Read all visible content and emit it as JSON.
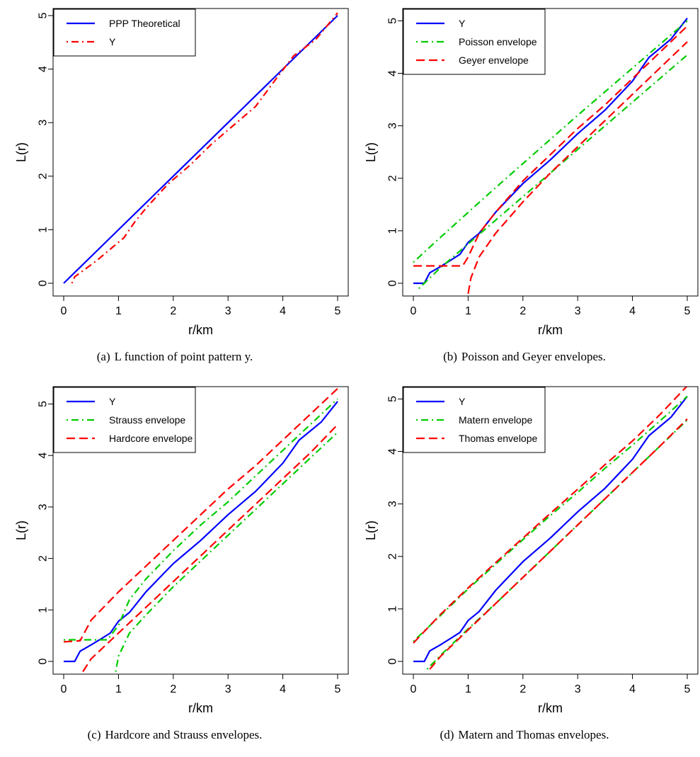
{
  "chart_data": [
    {
      "type": "line",
      "panel_label": "(a)",
      "caption": "L function of point pattern y.",
      "xlabel": "r/km",
      "ylabel": "L(r)",
      "xlim": [
        0,
        5
      ],
      "ylim": [
        0,
        5
      ],
      "xticks": [
        0,
        1,
        2,
        3,
        4,
        5
      ],
      "yticks": [
        0,
        1,
        2,
        3,
        4,
        5
      ],
      "legend_position": "top-left",
      "series": [
        {
          "name": "PPP Theoretical",
          "color": "#0000ff",
          "dash": "solid",
          "x": [
            0,
            5
          ],
          "y": [
            0,
            5
          ]
        },
        {
          "name": "Y",
          "color": "#ff0000",
          "dash": "dotdash",
          "x": [
            0.15,
            0.2,
            0.6,
            0.9,
            1.1,
            1.3,
            1.5,
            1.9,
            2.3,
            2.7,
            3.1,
            3.5,
            3.9,
            4.2,
            4.6,
            5.0
          ],
          "y": [
            0,
            0.12,
            0.42,
            0.68,
            0.85,
            1.15,
            1.4,
            1.85,
            2.2,
            2.6,
            2.95,
            3.3,
            3.85,
            4.25,
            4.55,
            5.05
          ]
        }
      ]
    },
    {
      "type": "line",
      "panel_label": "(b)",
      "caption": "Poisson and Geyer envelopes.",
      "xlabel": "r/km",
      "ylabel": "L(r)",
      "xlim": [
        0,
        5
      ],
      "ylim": [
        0,
        5.1
      ],
      "xticks": [
        0,
        1,
        2,
        3,
        4,
        5
      ],
      "yticks": [
        0,
        1,
        2,
        3,
        4,
        5
      ],
      "legend_position": "top-left",
      "series": [
        {
          "name": "Y",
          "color": "#0000ff",
          "dash": "solid",
          "x": [
            0,
            0.2,
            0.3,
            0.5,
            0.7,
            0.85,
            1.0,
            1.2,
            1.5,
            2.0,
            2.5,
            3.0,
            3.5,
            4.0,
            4.3,
            4.7,
            5.0
          ],
          "y": [
            0,
            0,
            0.2,
            0.32,
            0.45,
            0.55,
            0.78,
            0.95,
            1.35,
            1.9,
            2.35,
            2.85,
            3.3,
            3.85,
            4.3,
            4.65,
            5.05
          ]
        },
        {
          "name": "Poisson envelope",
          "color": "#00cc00",
          "dash": "dotdash",
          "x": [
            0,
            0.5,
            1,
            1.5,
            2,
            2.5,
            3,
            3.5,
            4,
            4.5,
            5
          ],
          "y": [
            0.4,
            0.88,
            1.35,
            1.82,
            2.28,
            2.74,
            3.2,
            3.65,
            4.1,
            4.55,
            5.0
          ]
        },
        {
          "name": "",
          "color": "#00cc00",
          "dash": "dotdash",
          "x": [
            0.1,
            0.5,
            1,
            1.5,
            2,
            2.5,
            3,
            3.5,
            4,
            4.5,
            5
          ],
          "y": [
            -0.1,
            0.3,
            0.75,
            1.2,
            1.65,
            2.1,
            2.55,
            3.0,
            3.45,
            3.9,
            4.35
          ]
        },
        {
          "name": "Geyer envelope",
          "color": "#ff0000",
          "dash": "dashed",
          "x": [
            0,
            0.9,
            1.0,
            1.2,
            1.5,
            2,
            2.5,
            3,
            3.5,
            4,
            4.5,
            5
          ],
          "y": [
            0.33,
            0.33,
            0.5,
            0.95,
            1.35,
            1.95,
            2.45,
            2.95,
            3.4,
            3.9,
            4.4,
            4.9
          ]
        },
        {
          "name": "",
          "color": "#ff0000",
          "dash": "dashed",
          "x": [
            1.0,
            1.05,
            1.2,
            1.5,
            2,
            2.5,
            3,
            3.5,
            4,
            4.5,
            5
          ],
          "y": [
            -0.2,
            0.1,
            0.5,
            0.95,
            1.55,
            2.1,
            2.6,
            3.1,
            3.6,
            4.1,
            4.6
          ]
        }
      ]
    },
    {
      "type": "line",
      "panel_label": "(c)",
      "caption": "Hardcore and Strauss envelopes.",
      "xlabel": "r/km",
      "ylabel": "L(r)",
      "xlim": [
        0,
        5
      ],
      "ylim": [
        0,
        5.2
      ],
      "xticks": [
        0,
        1,
        2,
        3,
        4,
        5
      ],
      "yticks": [
        0,
        1,
        2,
        3,
        4,
        5
      ],
      "legend_position": "top-left",
      "series": [
        {
          "name": "Y",
          "color": "#0000ff",
          "dash": "solid",
          "x": [
            0,
            0.2,
            0.3,
            0.5,
            0.7,
            0.85,
            1.0,
            1.2,
            1.5,
            2.0,
            2.5,
            3.0,
            3.5,
            4.0,
            4.3,
            4.7,
            5.0
          ],
          "y": [
            0,
            0,
            0.2,
            0.32,
            0.45,
            0.55,
            0.78,
            0.95,
            1.35,
            1.9,
            2.35,
            2.85,
            3.3,
            3.85,
            4.3,
            4.65,
            5.05
          ]
        },
        {
          "name": "Strauss envelope",
          "color": "#00cc00",
          "dash": "dotdash",
          "x": [
            0,
            0.8,
            1.0,
            1.2,
            1.5,
            2,
            2.5,
            3,
            3.5,
            4,
            4.5,
            5
          ],
          "y": [
            0.42,
            0.42,
            0.7,
            1.2,
            1.6,
            2.15,
            2.65,
            3.1,
            3.6,
            4.1,
            4.6,
            5.1
          ]
        },
        {
          "name": "",
          "color": "#00cc00",
          "dash": "dotdash",
          "x": [
            0.95,
            1.0,
            1.2,
            1.5,
            2,
            2.5,
            3,
            3.5,
            4,
            4.5,
            5
          ],
          "y": [
            -0.2,
            0.1,
            0.55,
            0.9,
            1.45,
            1.95,
            2.45,
            2.95,
            3.45,
            3.95,
            4.45
          ]
        },
        {
          "name": "Hardcore envelope",
          "color": "#ff0000",
          "dash": "dashed",
          "x": [
            0,
            0.3,
            0.5,
            1.0,
            1.5,
            2,
            2.5,
            3,
            3.5,
            4,
            4.5,
            5
          ],
          "y": [
            0.38,
            0.4,
            0.8,
            1.35,
            1.85,
            2.35,
            2.85,
            3.35,
            3.8,
            4.3,
            4.8,
            5.3
          ]
        },
        {
          "name": "",
          "color": "#ff0000",
          "dash": "dashed",
          "x": [
            0.35,
            0.5,
            1.0,
            1.5,
            2,
            2.5,
            3,
            3.5,
            4,
            4.5,
            5
          ],
          "y": [
            -0.2,
            0.05,
            0.55,
            1.05,
            1.55,
            2.05,
            2.55,
            3.05,
            3.55,
            4.05,
            4.6
          ]
        }
      ]
    },
    {
      "type": "line",
      "panel_label": "(d)",
      "caption": "Matern and Thomas envelopes.",
      "xlabel": "r/km",
      "ylabel": "L(r)",
      "xlim": [
        0,
        5
      ],
      "ylim": [
        0,
        5.1
      ],
      "xticks": [
        0,
        1,
        2,
        3,
        4,
        5
      ],
      "yticks": [
        0,
        1,
        2,
        3,
        4,
        5
      ],
      "legend_position": "top-left",
      "series": [
        {
          "name": "Y",
          "color": "#0000ff",
          "dash": "solid",
          "x": [
            0,
            0.2,
            0.3,
            0.5,
            0.7,
            0.85,
            1.0,
            1.2,
            1.5,
            2.0,
            2.5,
            3.0,
            3.5,
            4.0,
            4.3,
            4.7,
            5.0
          ],
          "y": [
            0,
            0,
            0.2,
            0.32,
            0.45,
            0.55,
            0.78,
            0.95,
            1.35,
            1.9,
            2.35,
            2.85,
            3.3,
            3.85,
            4.3,
            4.65,
            5.05
          ]
        },
        {
          "name": "Matern envelope",
          "color": "#00cc00",
          "dash": "dotdash",
          "x": [
            0,
            0.5,
            1,
            1.5,
            2,
            2.5,
            3,
            3.5,
            4,
            4.5,
            5
          ],
          "y": [
            0.38,
            0.88,
            1.38,
            1.85,
            2.32,
            2.78,
            3.22,
            3.68,
            4.12,
            4.58,
            5.05
          ]
        },
        {
          "name": "",
          "color": "#00cc00",
          "dash": "dotdash",
          "x": [
            0.25,
            0.5,
            1,
            1.5,
            2,
            2.5,
            3,
            3.5,
            4,
            4.5,
            5
          ],
          "y": [
            -0.15,
            0.12,
            0.62,
            1.1,
            1.6,
            2.1,
            2.6,
            3.1,
            3.6,
            4.1,
            4.6
          ]
        },
        {
          "name": "Thomas envelope",
          "color": "#ff0000",
          "dash": "dashed",
          "x": [
            0,
            0.5,
            1,
            1.5,
            2,
            2.5,
            3,
            3.5,
            4,
            4.5,
            5
          ],
          "y": [
            0.35,
            0.9,
            1.4,
            1.88,
            2.35,
            2.82,
            3.28,
            3.75,
            4.2,
            4.7,
            5.25
          ]
        },
        {
          "name": "",
          "color": "#ff0000",
          "dash": "dashed",
          "x": [
            0.3,
            0.5,
            1,
            1.5,
            2,
            2.5,
            3,
            3.5,
            4,
            4.5,
            5
          ],
          "y": [
            -0.15,
            0.1,
            0.6,
            1.1,
            1.6,
            2.1,
            2.6,
            3.1,
            3.6,
            4.1,
            4.62
          ]
        }
      ]
    }
  ]
}
